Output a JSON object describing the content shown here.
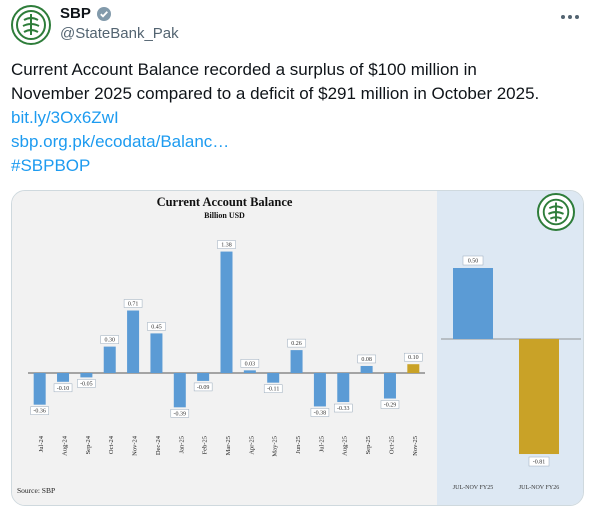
{
  "account": {
    "display_name": "SBP",
    "handle": "@StateBank_Pak"
  },
  "tweet": {
    "text_line1": "Current Account Balance recorded a surplus of $100 million in",
    "text_line2": "November 2025 compared to a deficit of $291 million in October 2025.",
    "link1": "bit.ly/3Ox6ZwI",
    "link2": "sbp.org.pk/ecodata/Balanc…",
    "hashtag": "#SBPBOP"
  },
  "colors": {
    "bar_blue": "#5b9bd5",
    "bar_highlight": "#c9a227",
    "link": "#1d9bf0",
    "panel_bg": "#dde8f3"
  },
  "icons": {
    "verified": "verified-badge-icon",
    "more": "more-options-icon",
    "logo": "sbp-logo-icon"
  },
  "chart_data": [
    {
      "type": "bar",
      "title": "Current Account Balance",
      "subtitle": "Billion USD",
      "source": "Source: SBP",
      "categories": [
        "Jul-24",
        "Aug-24",
        "Sep-24",
        "Oct-24",
        "Nov-24",
        "Dec-24",
        "Jan-25",
        "Feb-25",
        "Mar-25",
        "Apr-25",
        "May-25",
        "Jun-25",
        "Jul-25",
        "Aug-25",
        "Sep-25",
        "Oct-25",
        "Nov-25"
      ],
      "values": [
        -0.36,
        -0.1,
        -0.05,
        0.3,
        0.71,
        0.45,
        -0.39,
        -0.09,
        1.38,
        0.03,
        -0.11,
        0.26,
        -0.38,
        -0.33,
        0.08,
        -0.29,
        0.1
      ],
      "value_labels": [
        "-0.36",
        "-0.10",
        "-0.05",
        "0.30",
        "0.71",
        "0.45",
        "-0.39",
        "-0.09",
        "1.38",
        "0.03",
        "-0.11",
        "0.26",
        "-0.38",
        "-0.33",
        "0.08",
        "-0.29",
        "0.10"
      ],
      "highlight_index": 16,
      "ylim": [
        -0.55,
        1.45
      ],
      "grid": false
    },
    {
      "type": "bar",
      "categories": [
        "JUL-NOV FY25",
        "JUL-NOV FY26"
      ],
      "values": [
        0.5,
        -0.81
      ],
      "value_labels": [
        "0.50",
        "-0.81"
      ],
      "highlight_index": 1,
      "ylim": [
        -0.9,
        0.75
      ],
      "grid": false
    }
  ]
}
